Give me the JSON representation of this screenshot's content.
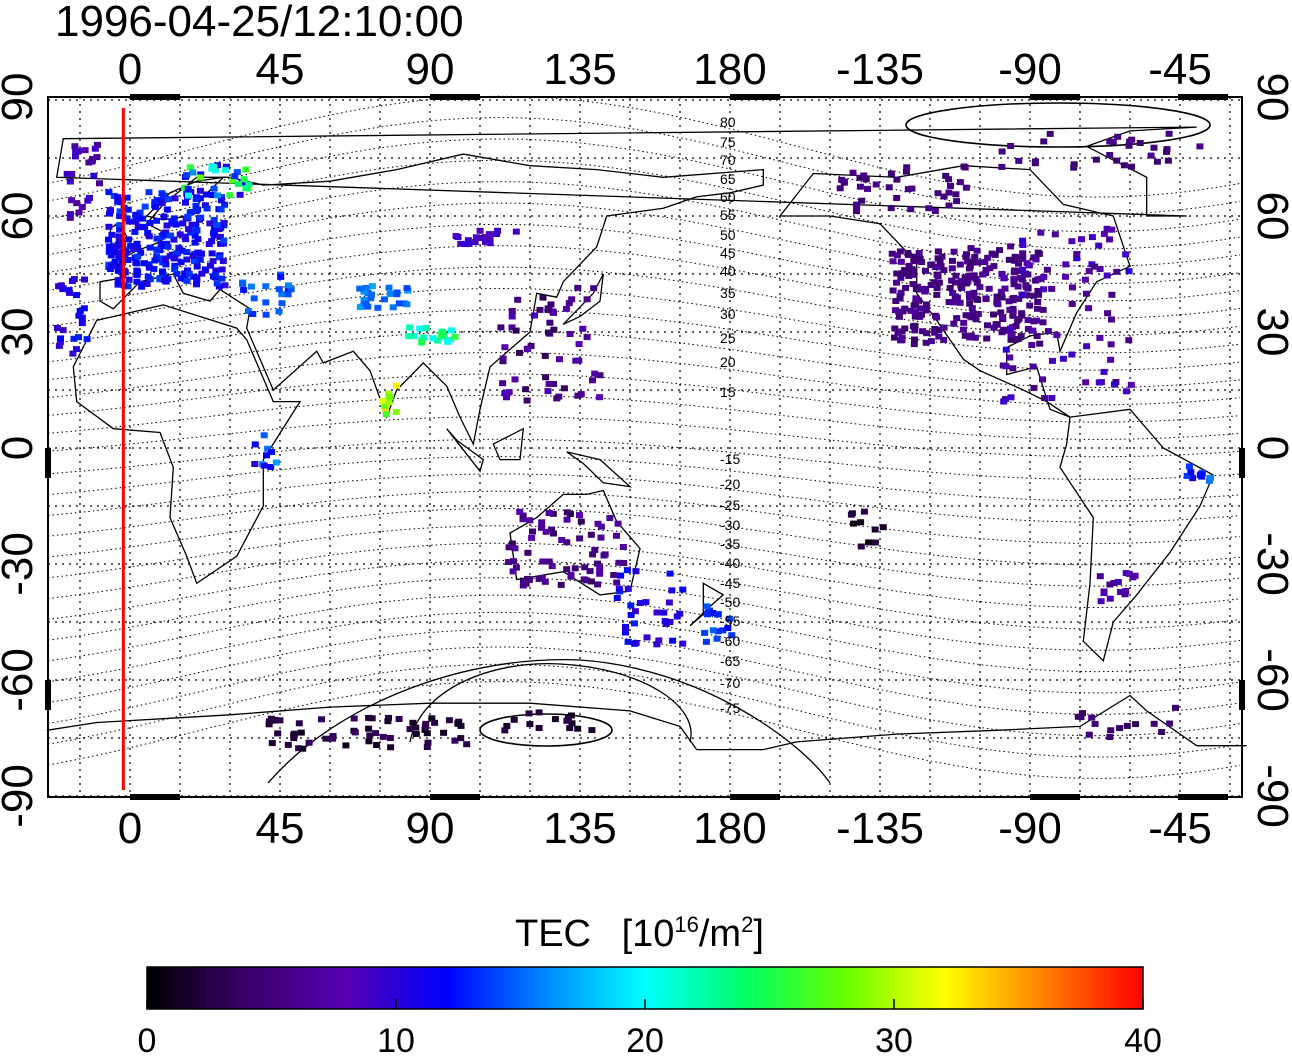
{
  "timestamp": "1996-04-25/12:10:00",
  "map": {
    "lon_ticks": [
      "0",
      "45",
      "90",
      "135",
      "180",
      "-135",
      "-90",
      "-45"
    ],
    "lat_ticks": [
      "90",
      "60",
      "30",
      "0",
      "-30",
      "-60",
      "-90"
    ],
    "grid": true,
    "lon_range": [
      -25,
      335
    ],
    "lat_range": [
      -92,
      92
    ],
    "meridian_marker_lon": -2,
    "meridian_marker_color": "#ff0000",
    "magnetic_lat_labels": [
      "80",
      "75",
      "70",
      "65",
      "60",
      "55",
      "50",
      "45",
      "40",
      "35",
      "30",
      "25",
      "20",
      "15",
      "-15",
      "-20",
      "-25",
      "-30",
      "-35",
      "-40",
      "-45",
      "-50",
      "-55",
      "-60",
      "-65",
      "-70",
      "-75"
    ]
  },
  "colorbar": {
    "title": "TEC",
    "units": "[10¹⁶/m²]",
    "ticks": [
      "0",
      "10",
      "20",
      "30",
      "40"
    ],
    "range": [
      0,
      40
    ],
    "colors": [
      "#000000",
      "#3a006a",
      "#5500b0",
      "#0000ff",
      "#0088ff",
      "#00ffff",
      "#00ff66",
      "#66ff00",
      "#ffff00",
      "#ff8000",
      "#ff0000"
    ]
  }
}
